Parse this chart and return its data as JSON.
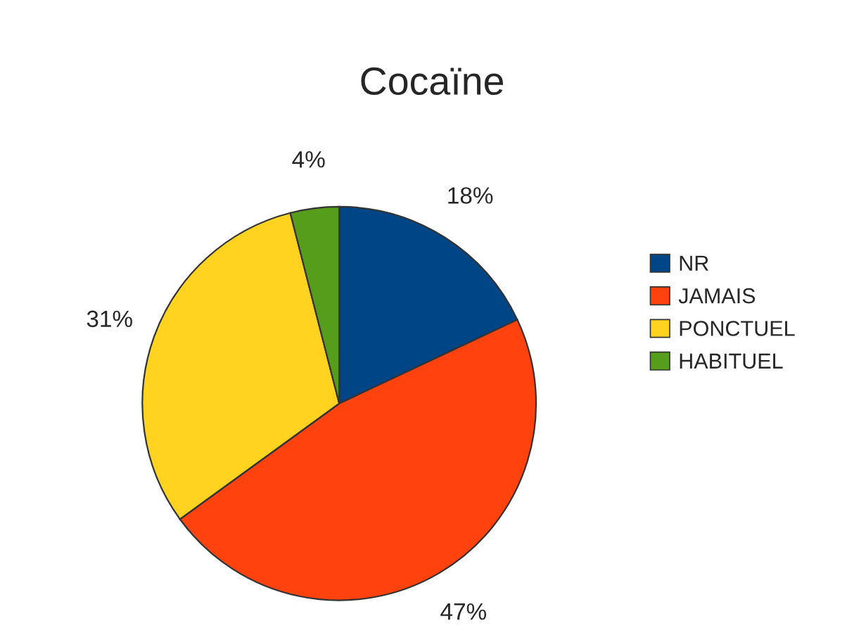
{
  "chart_data": {
    "type": "pie",
    "title": "Cocaïne",
    "categories": [
      "NR",
      "JAMAIS",
      "PONCTUEL",
      "HABITUEL"
    ],
    "values": [
      18,
      47,
      31,
      4
    ],
    "colors": [
      "#004586",
      "#ff420e",
      "#ffd320",
      "#579d1c"
    ],
    "value_labels": [
      "18%",
      "47%",
      "31%",
      "4%"
    ],
    "legend": "right"
  }
}
